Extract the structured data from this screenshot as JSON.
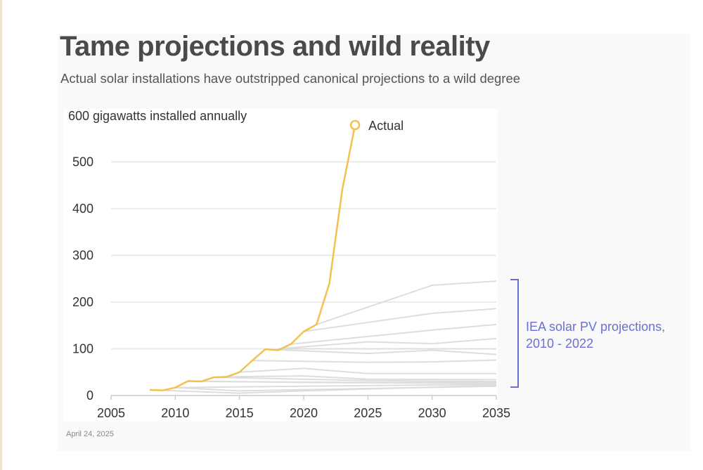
{
  "title": "Tame projections and wild reality",
  "subtitle": "Actual solar installations have outstripped canonical projections to a wild degree",
  "date": "April 24, 2025",
  "colors": {
    "actual": "#f2c14e",
    "projection": "#dddddd",
    "annotation": "#6b6fd4",
    "grid": "#e6e6e6"
  },
  "chart_data": {
    "type": "line",
    "title": "Tame projections and wild reality",
    "ylabel": "600 gigawatts installed annually",
    "xlim": [
      2005,
      2035
    ],
    "ylim": [
      0,
      600
    ],
    "xticks": [
      "2005",
      "2010",
      "2015",
      "2020",
      "2025",
      "2030",
      "2035"
    ],
    "yticks": [
      "0",
      "100",
      "200",
      "300",
      "400",
      "500"
    ],
    "grid": true,
    "actual": {
      "name": "Actual",
      "points": [
        [
          2008,
          12
        ],
        [
          2009,
          11
        ],
        [
          2010,
          17
        ],
        [
          2011,
          31
        ],
        [
          2012,
          30
        ],
        [
          2013,
          39
        ],
        [
          2014,
          40
        ],
        [
          2015,
          50
        ],
        [
          2016,
          75
        ],
        [
          2017,
          99
        ],
        [
          2018,
          97
        ],
        [
          2019,
          110
        ],
        [
          2020,
          137
        ],
        [
          2021,
          152
        ],
        [
          2022,
          240
        ],
        [
          2023,
          440
        ],
        [
          2024,
          579
        ]
      ]
    },
    "projections_label": "IEA solar PV projections,",
    "projections_label_2": "2010 - 2022",
    "projections": [
      [
        [
          2021,
          152
        ],
        [
          2030,
          236
        ],
        [
          2035,
          245
        ]
      ],
      [
        [
          2020,
          137
        ],
        [
          2030,
          176
        ],
        [
          2035,
          186
        ]
      ],
      [
        [
          2019,
          110
        ],
        [
          2030,
          140
        ],
        [
          2035,
          152
        ]
      ],
      [
        [
          2018,
          100
        ],
        [
          2025,
          115
        ],
        [
          2030,
          111
        ],
        [
          2035,
          122
        ]
      ],
      [
        [
          2018,
          100
        ],
        [
          2030,
          100
        ],
        [
          2035,
          100
        ]
      ],
      [
        [
          2017,
          99
        ],
        [
          2025,
          90
        ],
        [
          2030,
          97
        ],
        [
          2035,
          88
        ]
      ],
      [
        [
          2016,
          75
        ],
        [
          2025,
          71
        ],
        [
          2030,
          72
        ],
        [
          2035,
          76
        ]
      ],
      [
        [
          2015,
          50
        ],
        [
          2020,
          58
        ],
        [
          2025,
          47
        ],
        [
          2035,
          47
        ]
      ],
      [
        [
          2014,
          40
        ],
        [
          2020,
          42
        ],
        [
          2025,
          35
        ],
        [
          2035,
          34
        ]
      ],
      [
        [
          2013,
          39
        ],
        [
          2025,
          32
        ],
        [
          2035,
          30
        ]
      ],
      [
        [
          2012,
          30
        ],
        [
          2025,
          28
        ],
        [
          2035,
          28
        ]
      ],
      [
        [
          2011,
          31
        ],
        [
          2020,
          28
        ],
        [
          2035,
          26
        ]
      ],
      [
        [
          2010,
          17
        ],
        [
          2020,
          20
        ],
        [
          2035,
          24
        ]
      ],
      [
        [
          2009,
          11
        ],
        [
          2015,
          5
        ],
        [
          2020,
          10
        ],
        [
          2035,
          22
        ]
      ],
      [
        [
          2010,
          17
        ],
        [
          2015,
          10
        ],
        [
          2035,
          20
        ]
      ]
    ]
  }
}
